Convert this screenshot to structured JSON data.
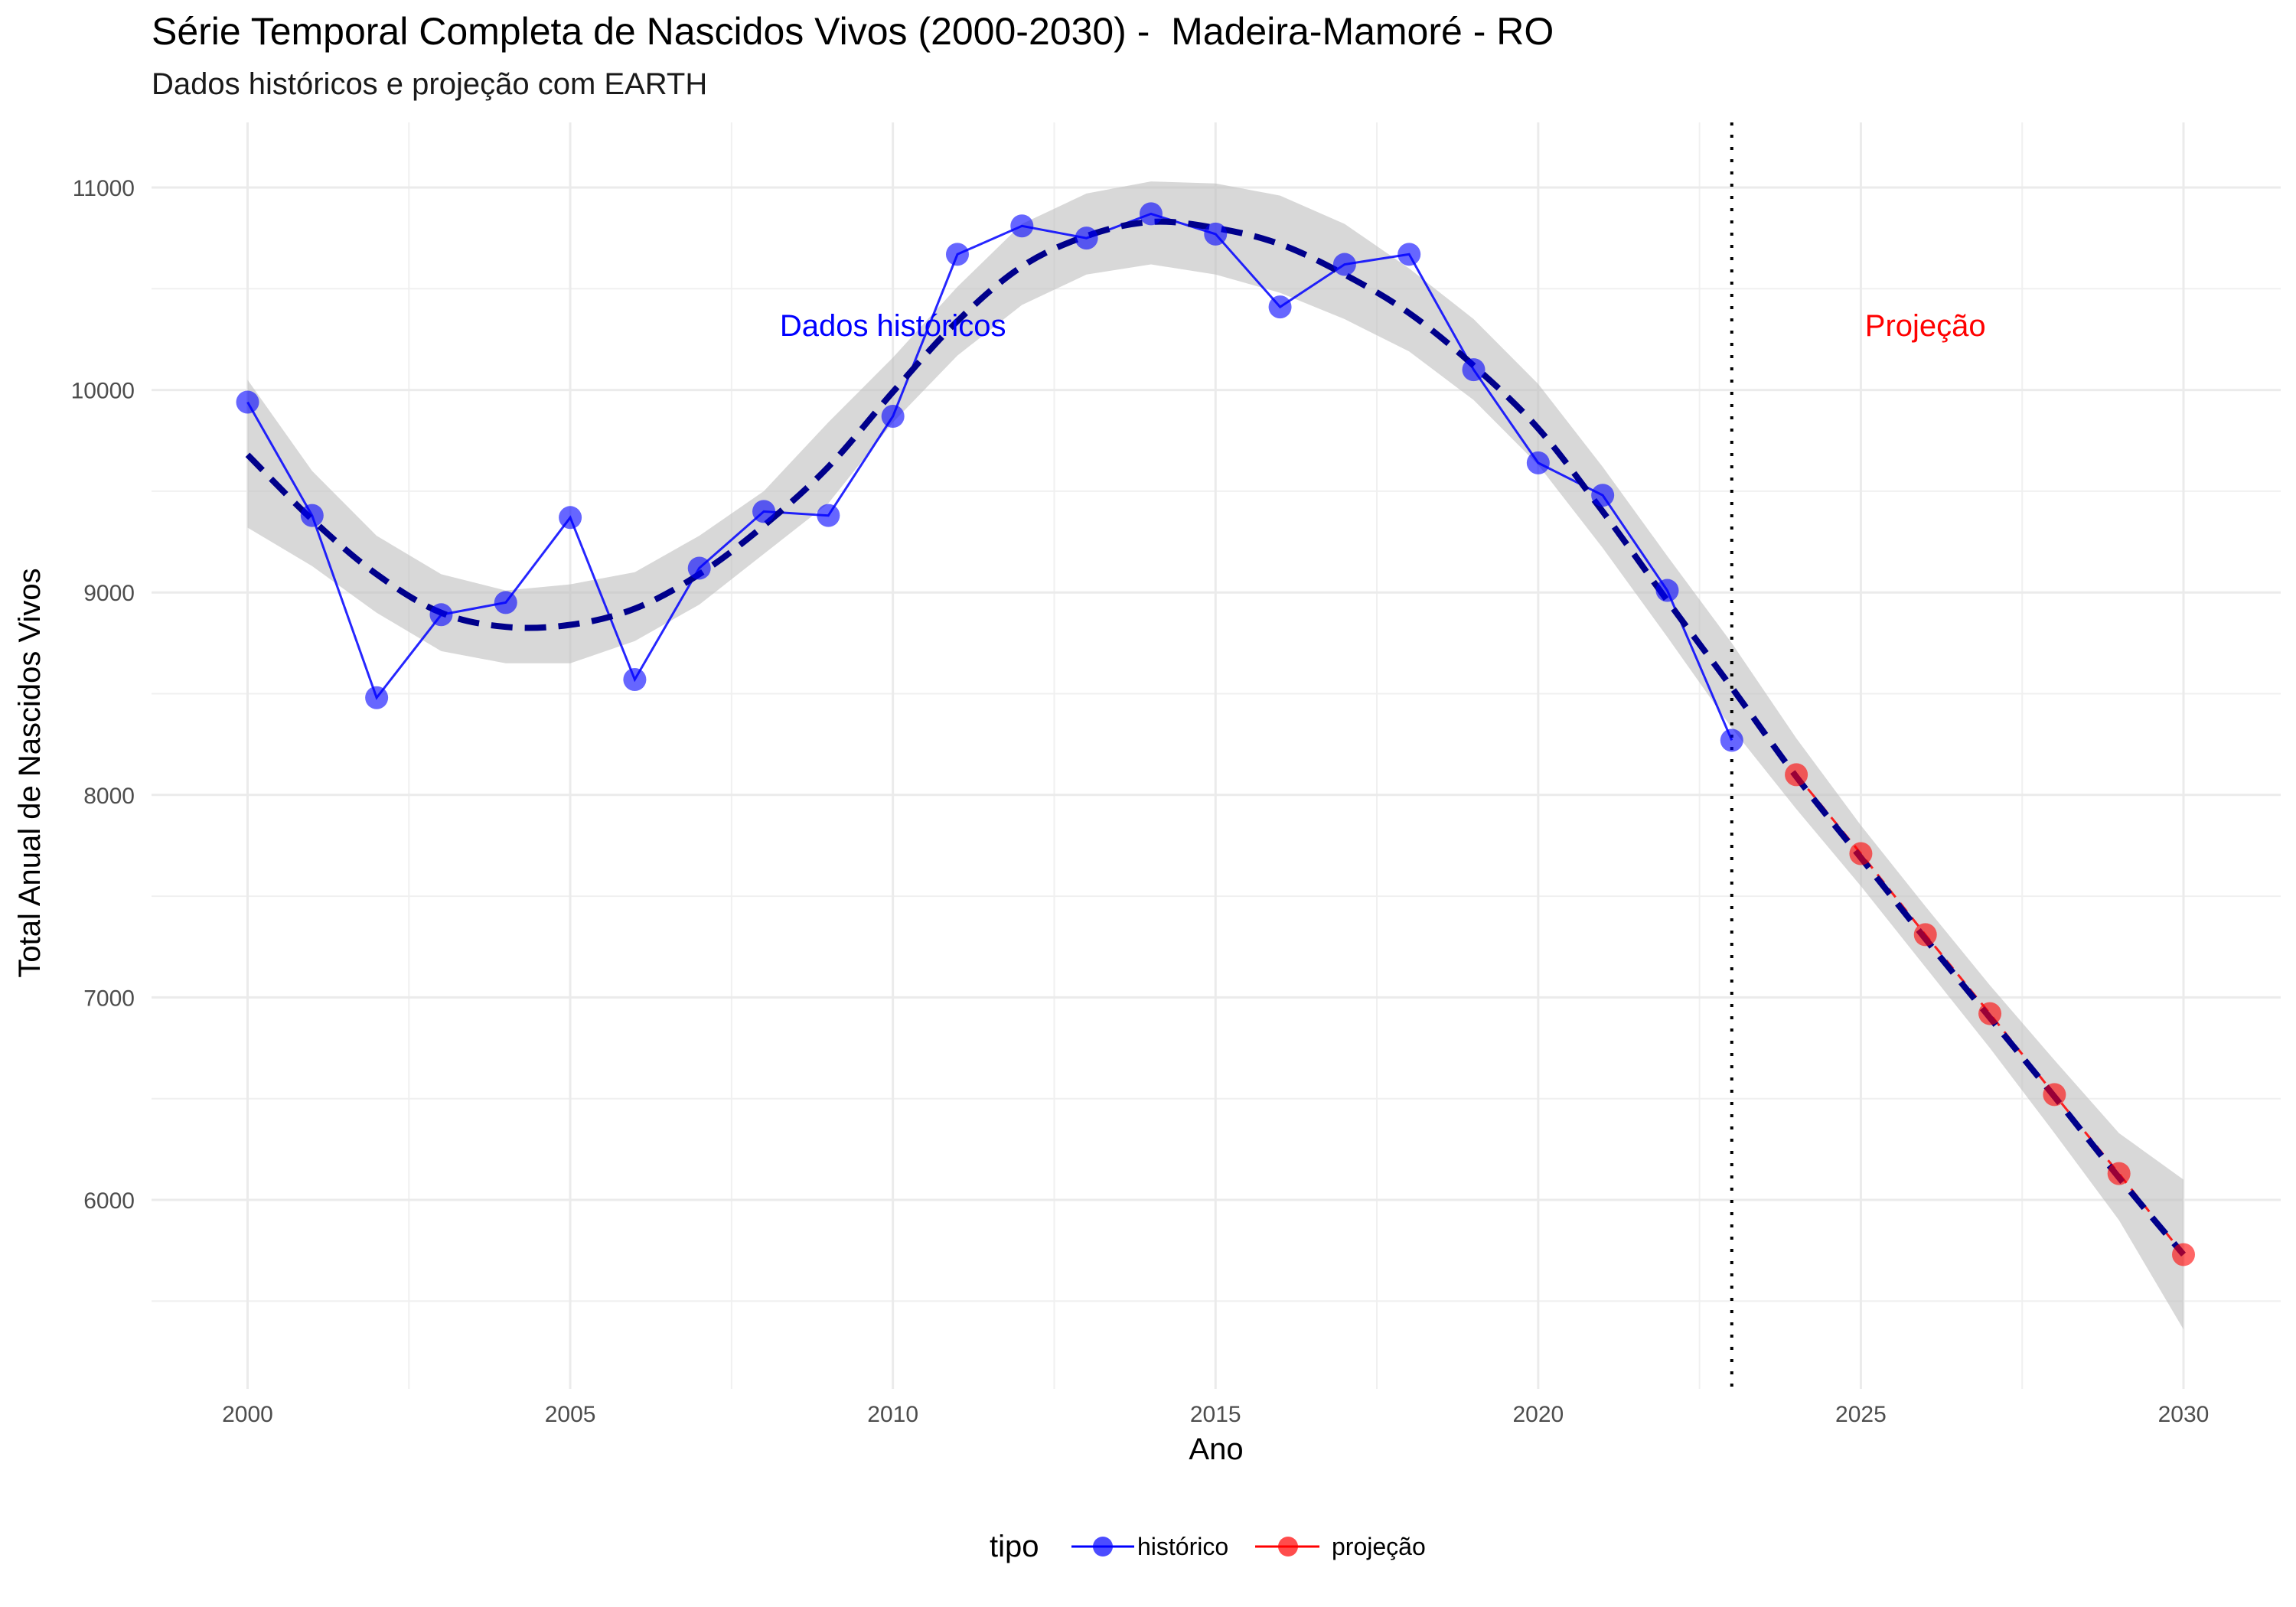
{
  "chart_data": {
    "type": "line",
    "title": "Série Temporal Completa de Nascidos Vivos (2000-2030) -  Madeira-Mamoré - RO",
    "subtitle": "Dados históricos e projeção com EARTH",
    "xlabel": "Ano",
    "ylabel": "Total Anual de Nascidos Vivos",
    "xlim": [
      1998.5,
      2031.5
    ],
    "ylim": [
      5000,
      11350
    ],
    "x_ticks": [
      2000,
      2005,
      2010,
      2015,
      2020,
      2025,
      2030
    ],
    "y_ticks": [
      6000,
      7000,
      8000,
      9000,
      10000,
      11000
    ],
    "grid": true,
    "legend": {
      "title": "tipo",
      "position": "bottom",
      "entries": [
        "histórico",
        "projeção"
      ]
    },
    "colors": {
      "historico": "#0000ff",
      "projecao": "#ff0000",
      "trend": "#00008b",
      "band": "#bebebe",
      "vline": "#000000"
    },
    "series": [
      {
        "name": "histórico",
        "x": [
          2000,
          2001,
          2002,
          2003,
          2004,
          2005,
          2006,
          2007,
          2008,
          2009,
          2010,
          2011,
          2012,
          2013,
          2014,
          2015,
          2016,
          2017,
          2018,
          2019,
          2020,
          2021,
          2022,
          2023
        ],
        "values": [
          9940,
          9380,
          8480,
          8890,
          8950,
          9370,
          8570,
          9120,
          9400,
          9380,
          9870,
          10670,
          10810,
          10750,
          10870,
          10770,
          10410,
          10620,
          10670,
          10100,
          9640,
          9480,
          9010,
          8270
        ]
      },
      {
        "name": "projeção",
        "x": [
          2024,
          2025,
          2026,
          2027,
          2028,
          2029,
          2030
        ],
        "values": [
          8100,
          7710,
          7310,
          6920,
          6520,
          6130,
          5730
        ]
      }
    ],
    "trend": {
      "x": [
        2000,
        2001,
        2002,
        2003,
        2004,
        2005,
        2006,
        2007,
        2008,
        2009,
        2010,
        2011,
        2012,
        2013,
        2014,
        2015,
        2016,
        2017,
        2018,
        2019,
        2020,
        2021,
        2022,
        2023,
        2024,
        2025,
        2026,
        2027,
        2028,
        2029,
        2030
      ],
      "values": [
        9680,
        9360,
        9090,
        8900,
        8830,
        8840,
        8920,
        9090,
        9330,
        9620,
        9990,
        10340,
        10610,
        10760,
        10830,
        10800,
        10720,
        10570,
        10380,
        10120,
        9810,
        9400,
        8960,
        8530,
        8090,
        7690,
        7290,
        6900,
        6510,
        6110,
        5730
      ],
      "lower": [
        9320,
        9130,
        8900,
        8710,
        8650,
        8650,
        8760,
        8940,
        9190,
        9440,
        9840,
        10170,
        10420,
        10570,
        10620,
        10570,
        10480,
        10350,
        10190,
        9950,
        9630,
        9220,
        8780,
        8330,
        7930,
        7550,
        7150,
        6750,
        6330,
        5900,
        5360
      ],
      "upper": [
        10050,
        9600,
        9280,
        9090,
        9010,
        9040,
        9100,
        9280,
        9500,
        9840,
        10160,
        10510,
        10820,
        10970,
        11030,
        11020,
        10960,
        10820,
        10600,
        10350,
        10030,
        9620,
        9180,
        8750,
        8280,
        7850,
        7450,
        7060,
        6690,
        6330,
        6100
      ]
    },
    "vline_x": 2023,
    "annotations": [
      {
        "text": "Dados históricos",
        "x": 2010,
        "y": 10320,
        "color": "#0000ff"
      },
      {
        "text": "Projeção",
        "x": 2026,
        "y": 10320,
        "color": "#ff0000"
      }
    ]
  }
}
